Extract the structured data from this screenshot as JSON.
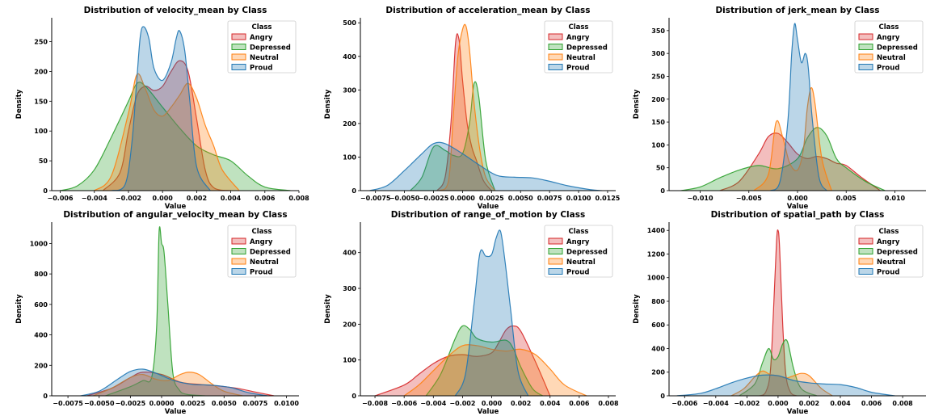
{
  "colors": {
    "Angry": "#d62728",
    "Depressed": "#2ca02c",
    "Neutral": "#ff7f0e",
    "Proud": "#1f77b4"
  },
  "chart_data": [
    {
      "type": "area",
      "title": "Distribution of velocity_mean by Class",
      "xlabel": "Value",
      "ylabel": "Density",
      "xlim": [
        -0.0065,
        0.008
      ],
      "ylim": [
        0,
        290
      ],
      "xticks": [
        -0.006,
        -0.004,
        -0.002,
        0.0,
        0.002,
        0.004,
        0.006,
        0.008
      ],
      "xtick_labels": [
        "−0.006",
        "−0.004",
        "−0.002",
        "0.000",
        "0.002",
        "0.004",
        "0.006",
        "0.008"
      ],
      "yticks": [
        0,
        50,
        100,
        150,
        200,
        250
      ],
      "legend_title": "Class",
      "legend_position": "upper right",
      "series": [
        {
          "name": "Angry",
          "x": [
            -0.0035,
            -0.0025,
            -0.002,
            -0.0015,
            -0.001,
            -0.0005,
            0.0,
            0.0005,
            0.001,
            0.0015,
            0.002,
            0.0025,
            0.003,
            0.004
          ],
          "values": [
            0,
            30,
            100,
            160,
            175,
            168,
            175,
            200,
            218,
            200,
            120,
            35,
            5,
            0
          ]
        },
        {
          "name": "Depressed",
          "x": [
            -0.006,
            -0.005,
            -0.004,
            -0.003,
            -0.002,
            -0.0015,
            -0.001,
            0.0,
            0.001,
            0.002,
            0.003,
            0.004,
            0.005,
            0.006,
            0.0075
          ],
          "values": [
            0,
            8,
            35,
            90,
            150,
            180,
            175,
            140,
            105,
            75,
            60,
            50,
            25,
            6,
            0
          ]
        },
        {
          "name": "Neutral",
          "x": [
            -0.004,
            -0.003,
            -0.002,
            -0.0015,
            -0.001,
            -0.0005,
            0.0,
            0.0005,
            0.001,
            0.0015,
            0.002,
            0.0025,
            0.003,
            0.0035,
            0.0045
          ],
          "values": [
            0,
            25,
            130,
            195,
            170,
            135,
            125,
            140,
            160,
            180,
            155,
            110,
            75,
            35,
            0
          ]
        },
        {
          "name": "Proud",
          "x": [
            -0.003,
            -0.0022,
            -0.0018,
            -0.0015,
            -0.0013,
            -0.0011,
            -0.0008,
            -0.0005,
            0.0,
            0.0005,
            0.0008,
            0.001,
            0.0013,
            0.0016,
            0.002,
            0.0028
          ],
          "values": [
            0,
            10,
            80,
            190,
            260,
            275,
            255,
            205,
            185,
            215,
            255,
            268,
            235,
            150,
            40,
            0
          ]
        }
      ]
    },
    {
      "type": "area",
      "title": "Distribution of acceleration_mean by Class",
      "xlabel": "Value",
      "ylabel": "Density",
      "xlim": [
        -0.0088,
        0.0132
      ],
      "ylim": [
        0,
        515
      ],
      "xticks": [
        -0.0075,
        -0.005,
        -0.0025,
        0.0,
        0.0025,
        0.005,
        0.0075,
        0.01,
        0.0125
      ],
      "xtick_labels": [
        "−0.0075",
        "−0.0050",
        "−0.0025",
        "0.0000",
        "0.0025",
        "0.0050",
        "0.0075",
        "0.0100",
        "0.0125"
      ],
      "yticks": [
        0,
        100,
        200,
        300,
        400,
        500
      ],
      "legend_title": "Class",
      "legend_position": "upper right",
      "series": [
        {
          "name": "Angry",
          "x": [
            -0.0022,
            -0.0015,
            -0.001,
            -0.0006,
            -0.0003,
            0.0,
            0.0004,
            0.0008,
            0.0012,
            0.0018,
            0.0025
          ],
          "values": [
            0,
            40,
            200,
            440,
            450,
            330,
            200,
            130,
            90,
            30,
            0
          ]
        },
        {
          "name": "Depressed",
          "x": [
            -0.0045,
            -0.0035,
            -0.0025,
            -0.0015,
            -0.0008,
            0.0,
            0.0006,
            0.001,
            0.0014,
            0.002,
            0.0028
          ],
          "values": [
            0,
            40,
            130,
            120,
            105,
            110,
            200,
            320,
            280,
            90,
            0
          ]
        },
        {
          "name": "Neutral",
          "x": [
            -0.002,
            -0.0012,
            -0.0008,
            -0.0004,
            0.0,
            0.0003,
            0.0006,
            0.001,
            0.0015,
            0.002,
            0.0028
          ],
          "values": [
            0,
            30,
            220,
            400,
            480,
            490,
            420,
            260,
            120,
            40,
            0
          ]
        },
        {
          "name": "Proud",
          "x": [
            -0.008,
            -0.0065,
            -0.005,
            -0.0035,
            -0.0025,
            -0.0015,
            0.0,
            0.0015,
            0.003,
            0.0045,
            0.006,
            0.0075,
            0.009,
            0.011,
            0.012
          ],
          "values": [
            0,
            15,
            60,
            110,
            140,
            140,
            110,
            75,
            45,
            40,
            38,
            28,
            15,
            3,
            0
          ]
        }
      ]
    },
    {
      "type": "area",
      "title": "Distribution of jerk_mean by Class",
      "xlabel": "Value",
      "ylabel": "Density",
      "xlim": [
        -0.0132,
        0.0132
      ],
      "ylim": [
        0,
        378
      ],
      "xticks": [
        -0.01,
        -0.005,
        0.0,
        0.005,
        0.01
      ],
      "xtick_labels": [
        "−0.010",
        "−0.005",
        "0.000",
        "0.005",
        "0.010"
      ],
      "yticks": [
        0,
        50,
        100,
        150,
        200,
        250,
        300,
        350
      ],
      "legend_title": "Class",
      "legend_position": "upper right",
      "series": [
        {
          "name": "Angry",
          "x": [
            -0.008,
            -0.006,
            -0.004,
            -0.003,
            -0.002,
            -0.001,
            0.0,
            0.001,
            0.002,
            0.003,
            0.004,
            0.005,
            0.0065,
            0.0085
          ],
          "values": [
            0,
            20,
            80,
            118,
            125,
            105,
            80,
            70,
            75,
            70,
            60,
            55,
            30,
            0
          ]
        },
        {
          "name": "Depressed",
          "x": [
            -0.012,
            -0.01,
            -0.008,
            -0.006,
            -0.004,
            -0.002,
            0.0,
            0.001,
            0.002,
            0.003,
            0.004,
            0.005,
            0.007,
            0.009
          ],
          "values": [
            0,
            8,
            28,
            45,
            55,
            48,
            70,
            115,
            138,
            120,
            70,
            50,
            20,
            0
          ]
        },
        {
          "name": "Neutral",
          "x": [
            -0.0045,
            -0.003,
            -0.0022,
            -0.0015,
            -0.0008,
            0.0,
            0.0006,
            0.001,
            0.0014,
            0.0018,
            0.0025,
            0.0035
          ],
          "values": [
            0,
            35,
            150,
            115,
            60,
            45,
            90,
            180,
            225,
            190,
            70,
            0
          ]
        },
        {
          "name": "Proud",
          "x": [
            -0.0028,
            -0.0018,
            -0.001,
            -0.0006,
            -0.0003,
            0.0,
            0.0004,
            0.0008,
            0.0011,
            0.0015,
            0.0022,
            0.003
          ],
          "values": [
            0,
            20,
            150,
            300,
            365,
            330,
            280,
            300,
            270,
            160,
            30,
            0
          ]
        }
      ]
    },
    {
      "type": "area",
      "title": "Distribution of angular_velocity_mean by Class",
      "xlabel": "Value",
      "ylabel": "Density",
      "xlim": [
        -0.0088,
        0.011
      ],
      "ylim": [
        0,
        1140
      ],
      "xticks": [
        -0.0075,
        -0.005,
        -0.0025,
        0.0,
        0.0025,
        0.005,
        0.0075,
        0.01
      ],
      "xtick_labels": [
        "−0.0075",
        "−0.0050",
        "−0.0025",
        "0.0000",
        "0.0025",
        "0.0050",
        "0.0075",
        "0.0100"
      ],
      "yticks": [
        0,
        200,
        400,
        600,
        800,
        1000
      ],
      "legend_title": "Class",
      "legend_position": "upper right",
      "series": [
        {
          "name": "Angry",
          "x": [
            -0.006,
            -0.004,
            -0.0025,
            -0.0015,
            0.0,
            0.0015,
            0.003,
            0.0045,
            0.006,
            0.0075,
            0.009
          ],
          "values": [
            0,
            50,
            120,
            155,
            140,
            90,
            75,
            65,
            50,
            25,
            0
          ]
        },
        {
          "name": "Depressed",
          "x": [
            -0.0045,
            -0.0025,
            -0.0015,
            -0.0008,
            -0.0004,
            -0.0002,
            0.0,
            0.0002,
            0.0005,
            0.0009,
            0.0014,
            0.002,
            0.0035
          ],
          "values": [
            0,
            60,
            100,
            120,
            450,
            1080,
            1000,
            940,
            600,
            150,
            40,
            10,
            0
          ]
        },
        {
          "name": "Neutral",
          "x": [
            -0.0055,
            -0.004,
            -0.0025,
            -0.0015,
            -0.0005,
            0.0005,
            0.0015,
            0.0022,
            0.003,
            0.004,
            0.005,
            0.0065
          ],
          "values": [
            0,
            50,
            120,
            140,
            110,
            100,
            140,
            155,
            140,
            80,
            30,
            0
          ]
        },
        {
          "name": "Proud",
          "x": [
            -0.0065,
            -0.005,
            -0.0035,
            -0.0025,
            -0.0015,
            -0.0005,
            0.001,
            0.0025,
            0.004,
            0.0055,
            0.007,
            0.0085
          ],
          "values": [
            0,
            30,
            110,
            160,
            175,
            150,
            100,
            75,
            70,
            55,
            20,
            0
          ]
        }
      ]
    },
    {
      "type": "area",
      "title": "Distribution of range_of_motion by Class",
      "xlabel": "Value",
      "ylabel": "Density",
      "xlim": [
        -0.009,
        0.0085
      ],
      "ylim": [
        0,
        485
      ],
      "xticks": [
        -0.008,
        -0.006,
        -0.004,
        -0.002,
        0.0,
        0.002,
        0.004,
        0.006,
        0.008
      ],
      "xtick_labels": [
        "−0.008",
        "−0.006",
        "−0.004",
        "−0.002",
        "0.000",
        "0.002",
        "0.004",
        "0.006",
        "0.008"
      ],
      "yticks": [
        0,
        100,
        200,
        300,
        400
      ],
      "legend_title": "Class",
      "legend_position": "upper right",
      "series": [
        {
          "name": "Angry",
          "x": [
            -0.008,
            -0.006,
            -0.005,
            -0.004,
            -0.003,
            -0.002,
            -0.001,
            0.0,
            0.0005,
            0.001,
            0.0015,
            0.002,
            0.003,
            0.004
          ],
          "values": [
            0,
            30,
            60,
            90,
            110,
            115,
            110,
            120,
            150,
            185,
            195,
            180,
            95,
            0
          ]
        },
        {
          "name": "Depressed",
          "x": [
            -0.0045,
            -0.0035,
            -0.0025,
            -0.002,
            -0.0015,
            -0.001,
            0.0,
            0.001,
            0.0015,
            0.002,
            0.0028,
            0.0035
          ],
          "values": [
            0,
            60,
            160,
            195,
            185,
            160,
            150,
            155,
            130,
            80,
            20,
            0
          ]
        },
        {
          "name": "Neutral",
          "x": [
            -0.006,
            -0.005,
            -0.004,
            -0.003,
            -0.002,
            -0.001,
            0.0,
            0.001,
            0.002,
            0.003,
            0.004,
            0.005,
            0.0065
          ],
          "values": [
            0,
            30,
            70,
            110,
            140,
            140,
            130,
            125,
            130,
            115,
            75,
            30,
            0
          ]
        },
        {
          "name": "Proud",
          "x": [
            -0.0025,
            -0.0018,
            -0.0012,
            -0.0008,
            -0.0004,
            0.0,
            0.0003,
            0.0006,
            0.0009,
            0.0013,
            0.0018,
            0.0025
          ],
          "values": [
            0,
            60,
            260,
            400,
            390,
            395,
            440,
            460,
            380,
            240,
            70,
            0
          ]
        }
      ]
    },
    {
      "type": "area",
      "title": "Distribution of spatial_path by Class",
      "xlabel": "Value",
      "ylabel": "Density",
      "xlim": [
        -0.007,
        0.0095
      ],
      "ylim": [
        0,
        1470
      ],
      "xticks": [
        -0.006,
        -0.004,
        -0.002,
        0.0,
        0.002,
        0.004,
        0.006,
        0.008
      ],
      "xtick_labels": [
        "−0.006",
        "−0.004",
        "−0.002",
        "0.000",
        "0.002",
        "0.004",
        "0.006",
        "0.008"
      ],
      "yticks": [
        0,
        200,
        400,
        600,
        800,
        1000,
        1200,
        1400
      ],
      "legend_title": "Class",
      "legend_position": "upper right",
      "series": [
        {
          "name": "Angry",
          "x": [
            -0.0012,
            -0.0008,
            -0.0005,
            -0.0003,
            -0.0001,
            0.0,
            0.0001,
            0.0003,
            0.0005,
            0.0008,
            0.0012
          ],
          "values": [
            0,
            30,
            200,
            700,
            1300,
            1400,
            1250,
            600,
            180,
            30,
            0
          ]
        },
        {
          "name": "Depressed",
          "x": [
            -0.0025,
            -0.0015,
            -0.001,
            -0.0006,
            -0.0003,
            0.0,
            0.0003,
            0.0006,
            0.001,
            0.0015,
            0.0025
          ],
          "values": [
            0,
            100,
            280,
            400,
            310,
            330,
            440,
            460,
            230,
            60,
            0
          ]
        },
        {
          "name": "Neutral",
          "x": [
            -0.003,
            -0.0022,
            -0.0015,
            -0.001,
            -0.0005,
            0.0,
            0.0005,
            0.001,
            0.0015,
            0.002,
            0.0028,
            0.0035
          ],
          "values": [
            0,
            60,
            160,
            210,
            180,
            170,
            150,
            170,
            190,
            170,
            60,
            0
          ]
        },
        {
          "name": "Proud",
          "x": [
            -0.0065,
            -0.005,
            -0.004,
            -0.003,
            -0.002,
            -0.001,
            0.0,
            0.001,
            0.002,
            0.003,
            0.004,
            0.005,
            0.006,
            0.0075
          ],
          "values": [
            0,
            20,
            60,
            110,
            150,
            175,
            170,
            130,
            110,
            100,
            95,
            70,
            30,
            0
          ]
        }
      ]
    }
  ]
}
